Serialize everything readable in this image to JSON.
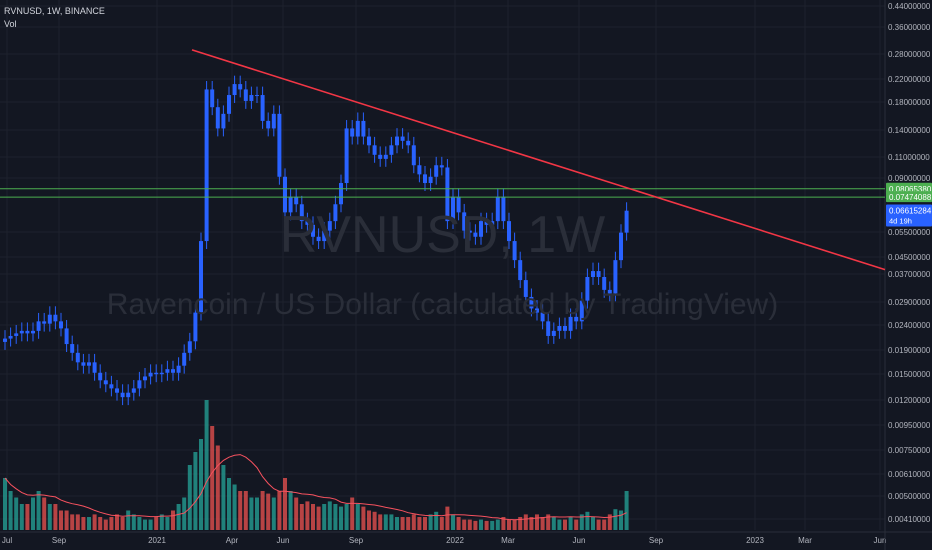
{
  "header": {
    "symbol_line": "RVNUSD, 1W, BINANCE",
    "vol_label": "Vol"
  },
  "watermark": {
    "symbol": "RVNUSD, 1W",
    "description": "Ravencoin / US Dollar (calculated by TradingView)"
  },
  "colors": {
    "background": "#131722",
    "up": "#2962ff",
    "down": "#2962ff",
    "vol_up": "#26a69a",
    "vol_down": "#ef5350",
    "trendline": "#f23645",
    "hline": "#4caf50",
    "vol_ma": "#f7525f",
    "grid": "#1e222d",
    "axis_text": "#b2b5be",
    "price_tag": "#2962ff"
  },
  "chart_data": {
    "type": "candlestick",
    "title": "RVNUSD, 1W, BINANCE",
    "y_scale": "log",
    "y_axis_ticks": [
      "0.44000000",
      "0.36000000",
      "0.28000000",
      "0.22000000",
      "0.18000000",
      "0.14000000",
      "0.11000000",
      "0.09000000",
      "0.05500000",
      "0.04500000",
      "0.03700000",
      "0.02900000",
      "0.02400000",
      "0.01900000",
      "0.01500000",
      "0.01200000",
      "0.00950000",
      "0.00750000",
      "0.00610000",
      "0.00500000",
      "0.00410000"
    ],
    "x_axis_ticks": [
      "Jul",
      "Sep",
      "2021",
      "Apr",
      "Jun",
      "Sep",
      "2022",
      "Mar",
      "Jun",
      "Sep",
      "2023",
      "Mar",
      "Jun"
    ],
    "price_labels": [
      {
        "value": "0.08065380",
        "kind": "horizontal-line"
      },
      {
        "value": "0.07474088",
        "kind": "horizontal-line"
      },
      {
        "value": "0.06615284",
        "kind": "last-price",
        "countdown": "4d 19h"
      }
    ],
    "horizontal_lines": [
      0.0806538,
      0.07474088
    ],
    "trendline": {
      "from": {
        "time": "2021-02",
        "price": 0.287
      },
      "to": {
        "time": "2023-06",
        "price": 0.0385
      }
    },
    "close_series": [
      0.0205,
      0.021,
      0.0215,
      0.022,
      0.0215,
      0.022,
      0.024,
      0.0235,
      0.0255,
      0.024,
      0.0225,
      0.0195,
      0.018,
      0.0165,
      0.016,
      0.0165,
      0.015,
      0.014,
      0.0135,
      0.013,
      0.0125,
      0.012,
      0.0125,
      0.013,
      0.014,
      0.0145,
      0.015,
      0.0148,
      0.015,
      0.0155,
      0.015,
      0.016,
      0.018,
      0.02,
      0.026,
      0.05,
      0.2,
      0.17,
      0.14,
      0.16,
      0.19,
      0.21,
      0.2,
      0.18,
      0.19,
      0.19,
      0.15,
      0.14,
      0.16,
      0.09,
      0.065,
      0.075,
      0.07,
      0.06,
      0.058,
      0.052,
      0.05,
      0.055,
      0.06,
      0.07,
      0.085,
      0.14,
      0.13,
      0.15,
      0.13,
      0.12,
      0.11,
      0.106,
      0.11,
      0.12,
      0.13,
      0.125,
      0.12,
      0.1,
      0.092,
      0.085,
      0.09,
      0.1,
      0.098,
      0.06,
      0.075,
      0.065,
      0.055,
      0.054,
      0.052,
      0.06,
      0.058,
      0.06,
      0.075,
      0.06,
      0.05,
      0.042,
      0.035,
      0.03,
      0.027,
      0.026,
      0.024,
      0.021,
      0.022,
      0.023,
      0.022,
      0.025,
      0.024,
      0.029,
      0.036,
      0.038,
      0.036,
      0.032,
      0.031,
      0.042,
      0.054,
      0.066
    ],
    "volume_relative": [
      0.4,
      0.3,
      0.25,
      0.2,
      0.2,
      0.25,
      0.3,
      0.25,
      0.2,
      0.2,
      0.15,
      0.15,
      0.12,
      0.12,
      0.1,
      0.1,
      0.12,
      0.1,
      0.08,
      0.1,
      0.12,
      0.1,
      0.15,
      0.12,
      0.1,
      0.08,
      0.08,
      0.1,
      0.12,
      0.1,
      0.15,
      0.2,
      0.25,
      0.5,
      0.6,
      0.7,
      1.0,
      0.8,
      0.65,
      0.5,
      0.4,
      0.35,
      0.3,
      0.3,
      0.25,
      0.25,
      0.3,
      0.28,
      0.25,
      0.3,
      0.4,
      0.3,
      0.25,
      0.2,
      0.22,
      0.2,
      0.18,
      0.2,
      0.22,
      0.2,
      0.18,
      0.2,
      0.25,
      0.2,
      0.18,
      0.15,
      0.14,
      0.12,
      0.12,
      0.12,
      0.1,
      0.1,
      0.1,
      0.12,
      0.1,
      0.1,
      0.12,
      0.14,
      0.1,
      0.18,
      0.12,
      0.1,
      0.08,
      0.08,
      0.07,
      0.08,
      0.07,
      0.07,
      0.08,
      0.1,
      0.08,
      0.08,
      0.1,
      0.12,
      0.1,
      0.12,
      0.1,
      0.12,
      0.1,
      0.08,
      0.08,
      0.1,
      0.08,
      0.12,
      0.14,
      0.1,
      0.08,
      0.08,
      0.12,
      0.16,
      0.15,
      0.3
    ]
  }
}
